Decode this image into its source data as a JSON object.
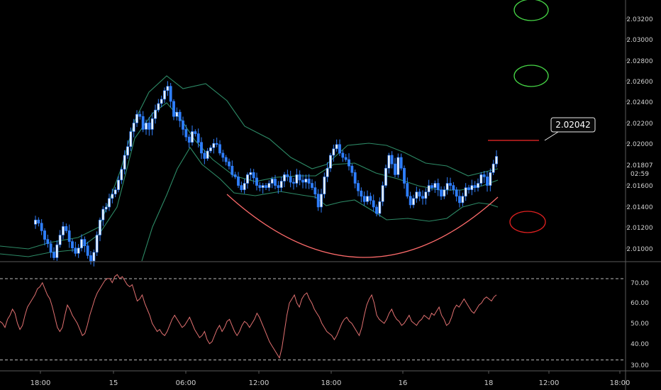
{
  "chart_data": [
    {
      "type": "candlestick",
      "ylim": [
        2.009,
        2.0332
      ],
      "y_ticks": [
        "2.03200",
        "2.03000",
        "2.02800",
        "2.02600",
        "2.02400",
        "2.02200",
        "2.02000",
        "2.01600",
        "2.01400",
        "2.01200",
        "2.01000"
      ],
      "last_price": "2.01807",
      "countdown": "02:59",
      "callout": "2.02042",
      "colors": {
        "bull": "#eaf3ff",
        "bear": "#2f7fff",
        "bands": "#2d8a66",
        "curve": "#ff6b6b",
        "green_circle": "#46d646",
        "red_circle": "#e02020",
        "resistance": "#cc2222"
      },
      "closes": [
        2.0128,
        2.0125,
        2.0118,
        2.011,
        2.0106,
        2.0098,
        2.0093,
        2.0105,
        2.0114,
        2.0122,
        2.0118,
        2.0108,
        2.0102,
        2.0097,
        2.0102,
        2.011,
        2.0104,
        2.0095,
        2.009,
        2.0098,
        2.0114,
        2.0128,
        2.0138,
        2.014,
        2.0148,
        2.0152,
        2.0156,
        2.0165,
        2.0175,
        2.0188,
        2.0196,
        2.021,
        2.0218,
        2.0226,
        2.0224,
        2.0212,
        2.0218,
        2.0212,
        2.0222,
        2.023,
        2.0236,
        2.024,
        2.0248,
        2.0252,
        2.0238,
        2.0224,
        2.0228,
        2.022,
        2.0212,
        2.0205,
        2.02,
        2.021,
        2.0208,
        2.02,
        2.019,
        2.0185,
        2.0192,
        2.0195,
        2.0199,
        2.0198,
        2.019,
        2.0186,
        2.0182,
        2.0178,
        2.017,
        2.0168,
        2.016,
        2.0156,
        2.0162,
        2.017,
        2.0172,
        2.0167,
        2.016,
        2.0158,
        2.016,
        2.0158,
        2.0162,
        2.0166,
        2.016,
        2.0158,
        2.0164,
        2.017,
        2.0168,
        2.0163,
        2.0162,
        2.017,
        2.0165,
        2.0163,
        2.0166,
        2.0162,
        2.0158,
        2.0152,
        2.014,
        2.0152,
        2.0168,
        2.0176,
        2.0188,
        2.0194,
        2.0198,
        2.019,
        2.0186,
        2.0184,
        2.0178,
        2.0172,
        2.0162,
        2.0155,
        2.015,
        2.0145,
        2.015,
        2.0146,
        2.014,
        2.0134,
        2.0145,
        2.016,
        2.0176,
        2.0188,
        2.018,
        2.017,
        2.0186,
        2.0176,
        2.0162,
        2.015,
        2.0142,
        2.0148,
        2.0154,
        2.015,
        2.0148,
        2.0154,
        2.016,
        2.0158,
        2.0162,
        2.0156,
        2.015,
        2.0156,
        2.0162,
        2.016,
        2.0156,
        2.015,
        2.0144,
        2.015,
        2.0158,
        2.0156,
        2.016,
        2.0158,
        2.0162,
        2.017,
        2.0168,
        2.016,
        2.0172,
        2.018,
        2.0187
      ],
      "band_upper": [
        [
          0,
          347
        ],
        [
          40,
          351
        ],
        [
          70,
          342
        ],
        [
          110,
          335
        ],
        [
          140,
          320
        ],
        [
          170,
          240
        ],
        [
          190,
          170
        ],
        [
          210,
          130
        ],
        [
          235,
          107
        ],
        [
          258,
          125
        ],
        [
          290,
          118
        ],
        [
          320,
          142
        ],
        [
          345,
          178
        ],
        [
          380,
          196
        ],
        [
          410,
          222
        ],
        [
          440,
          238
        ],
        [
          460,
          232
        ],
        [
          490,
          205
        ],
        [
          520,
          202
        ],
        [
          545,
          205
        ],
        [
          570,
          215
        ],
        [
          600,
          230
        ],
        [
          630,
          234
        ],
        [
          660,
          248
        ],
        [
          702,
          238
        ]
      ],
      "band_middle": [
        [
          0,
          358
        ],
        [
          40,
          362
        ],
        [
          70,
          356
        ],
        [
          110,
          352
        ],
        [
          140,
          330
        ],
        [
          165,
          292
        ],
        [
          190,
          195
        ],
        [
          215,
          160
        ],
        [
          235,
          145
        ],
        [
          255,
          168
        ],
        [
          275,
          198
        ],
        [
          300,
          225
        ],
        [
          330,
          248
        ],
        [
          360,
          256
        ],
        [
          390,
          250
        ],
        [
          420,
          248
        ],
        [
          445,
          248
        ],
        [
          470,
          232
        ],
        [
          500,
          230
        ],
        [
          530,
          244
        ],
        [
          560,
          252
        ],
        [
          590,
          262
        ],
        [
          620,
          268
        ],
        [
          650,
          268
        ],
        [
          680,
          262
        ],
        [
          702,
          254
        ]
      ],
      "band_lower": [
        [
          200,
          368
        ],
        [
          215,
          320
        ],
        [
          235,
          275
        ],
        [
          250,
          238
        ],
        [
          268,
          208
        ],
        [
          285,
          232
        ],
        [
          310,
          252
        ],
        [
          330,
          272
        ],
        [
          360,
          276
        ],
        [
          395,
          270
        ],
        [
          425,
          275
        ],
        [
          445,
          278
        ],
        [
          460,
          290
        ],
        [
          480,
          285
        ],
        [
          500,
          282
        ],
        [
          525,
          297
        ],
        [
          545,
          310
        ],
        [
          575,
          308
        ],
        [
          605,
          312
        ],
        [
          630,
          308
        ],
        [
          652,
          292
        ],
        [
          675,
          286
        ],
        [
          690,
          288
        ],
        [
          702,
          292
        ]
      ],
      "curve": {
        "start_x": 320,
        "vertex_x": 513,
        "vertex_y": 363,
        "end_x": 702,
        "start_y": 274,
        "end_y": 278
      },
      "green_circles": [
        {
          "cx": 749,
          "cy": 14
        },
        {
          "cx": 749,
          "cy": 107
        }
      ],
      "red_circle": {
        "cx": 744,
        "cy": 313
      }
    },
    {
      "type": "line",
      "indicator": "RSI",
      "ylim": [
        25,
        78
      ],
      "y_ticks": [
        "70.00",
        "60.00",
        "50.00",
        "40.00",
        "30.00"
      ],
      "levels": [
        70,
        30
      ],
      "x_ticks": [
        "18:00",
        "15",
        "06:00",
        "12:00",
        "18:00",
        "16",
        "18",
        "12:00",
        "18:00"
      ],
      "values": [
        49,
        48,
        46,
        50,
        52,
        55,
        53,
        48,
        45,
        47,
        52,
        56,
        58,
        60,
        62,
        65,
        66,
        68,
        65,
        62,
        60,
        56,
        51,
        46,
        44,
        46,
        52,
        57,
        55,
        52,
        50,
        48,
        45,
        42,
        43,
        47,
        52,
        56,
        60,
        63,
        65,
        67,
        69,
        70,
        70,
        68,
        71,
        72,
        70,
        71,
        69,
        67,
        66,
        67,
        63,
        59,
        60,
        62,
        58,
        55,
        52,
        48,
        46,
        44,
        45,
        43,
        42,
        44,
        47,
        50,
        52,
        50,
        48,
        46,
        47,
        49,
        51,
        48,
        45,
        43,
        41,
        42,
        44,
        40,
        38,
        39,
        42,
        45,
        47,
        44,
        46,
        49,
        50,
        47,
        44,
        42,
        44,
        47,
        49,
        48,
        46,
        48,
        50,
        53,
        51,
        48,
        45,
        42,
        39,
        37,
        35,
        33,
        31,
        36,
        44,
        52,
        58,
        60,
        62,
        58,
        56,
        60,
        62,
        63,
        60,
        58,
        55,
        53,
        51,
        48,
        46,
        44,
        43,
        42,
        40,
        42,
        45,
        48,
        50,
        51,
        49,
        48,
        46,
        44,
        42,
        46,
        52,
        57,
        60,
        62,
        58,
        52,
        50,
        49,
        48,
        50,
        53,
        55,
        52,
        50,
        49,
        47,
        48,
        50,
        52,
        49,
        48,
        47,
        49,
        50,
        52,
        51,
        50,
        53,
        52,
        54,
        56,
        52,
        50,
        47,
        48,
        51,
        55,
        57,
        56,
        58,
        60,
        58,
        56,
        54,
        53,
        55,
        57,
        58,
        60,
        61,
        60,
        59,
        61,
        62
      ]
    }
  ]
}
